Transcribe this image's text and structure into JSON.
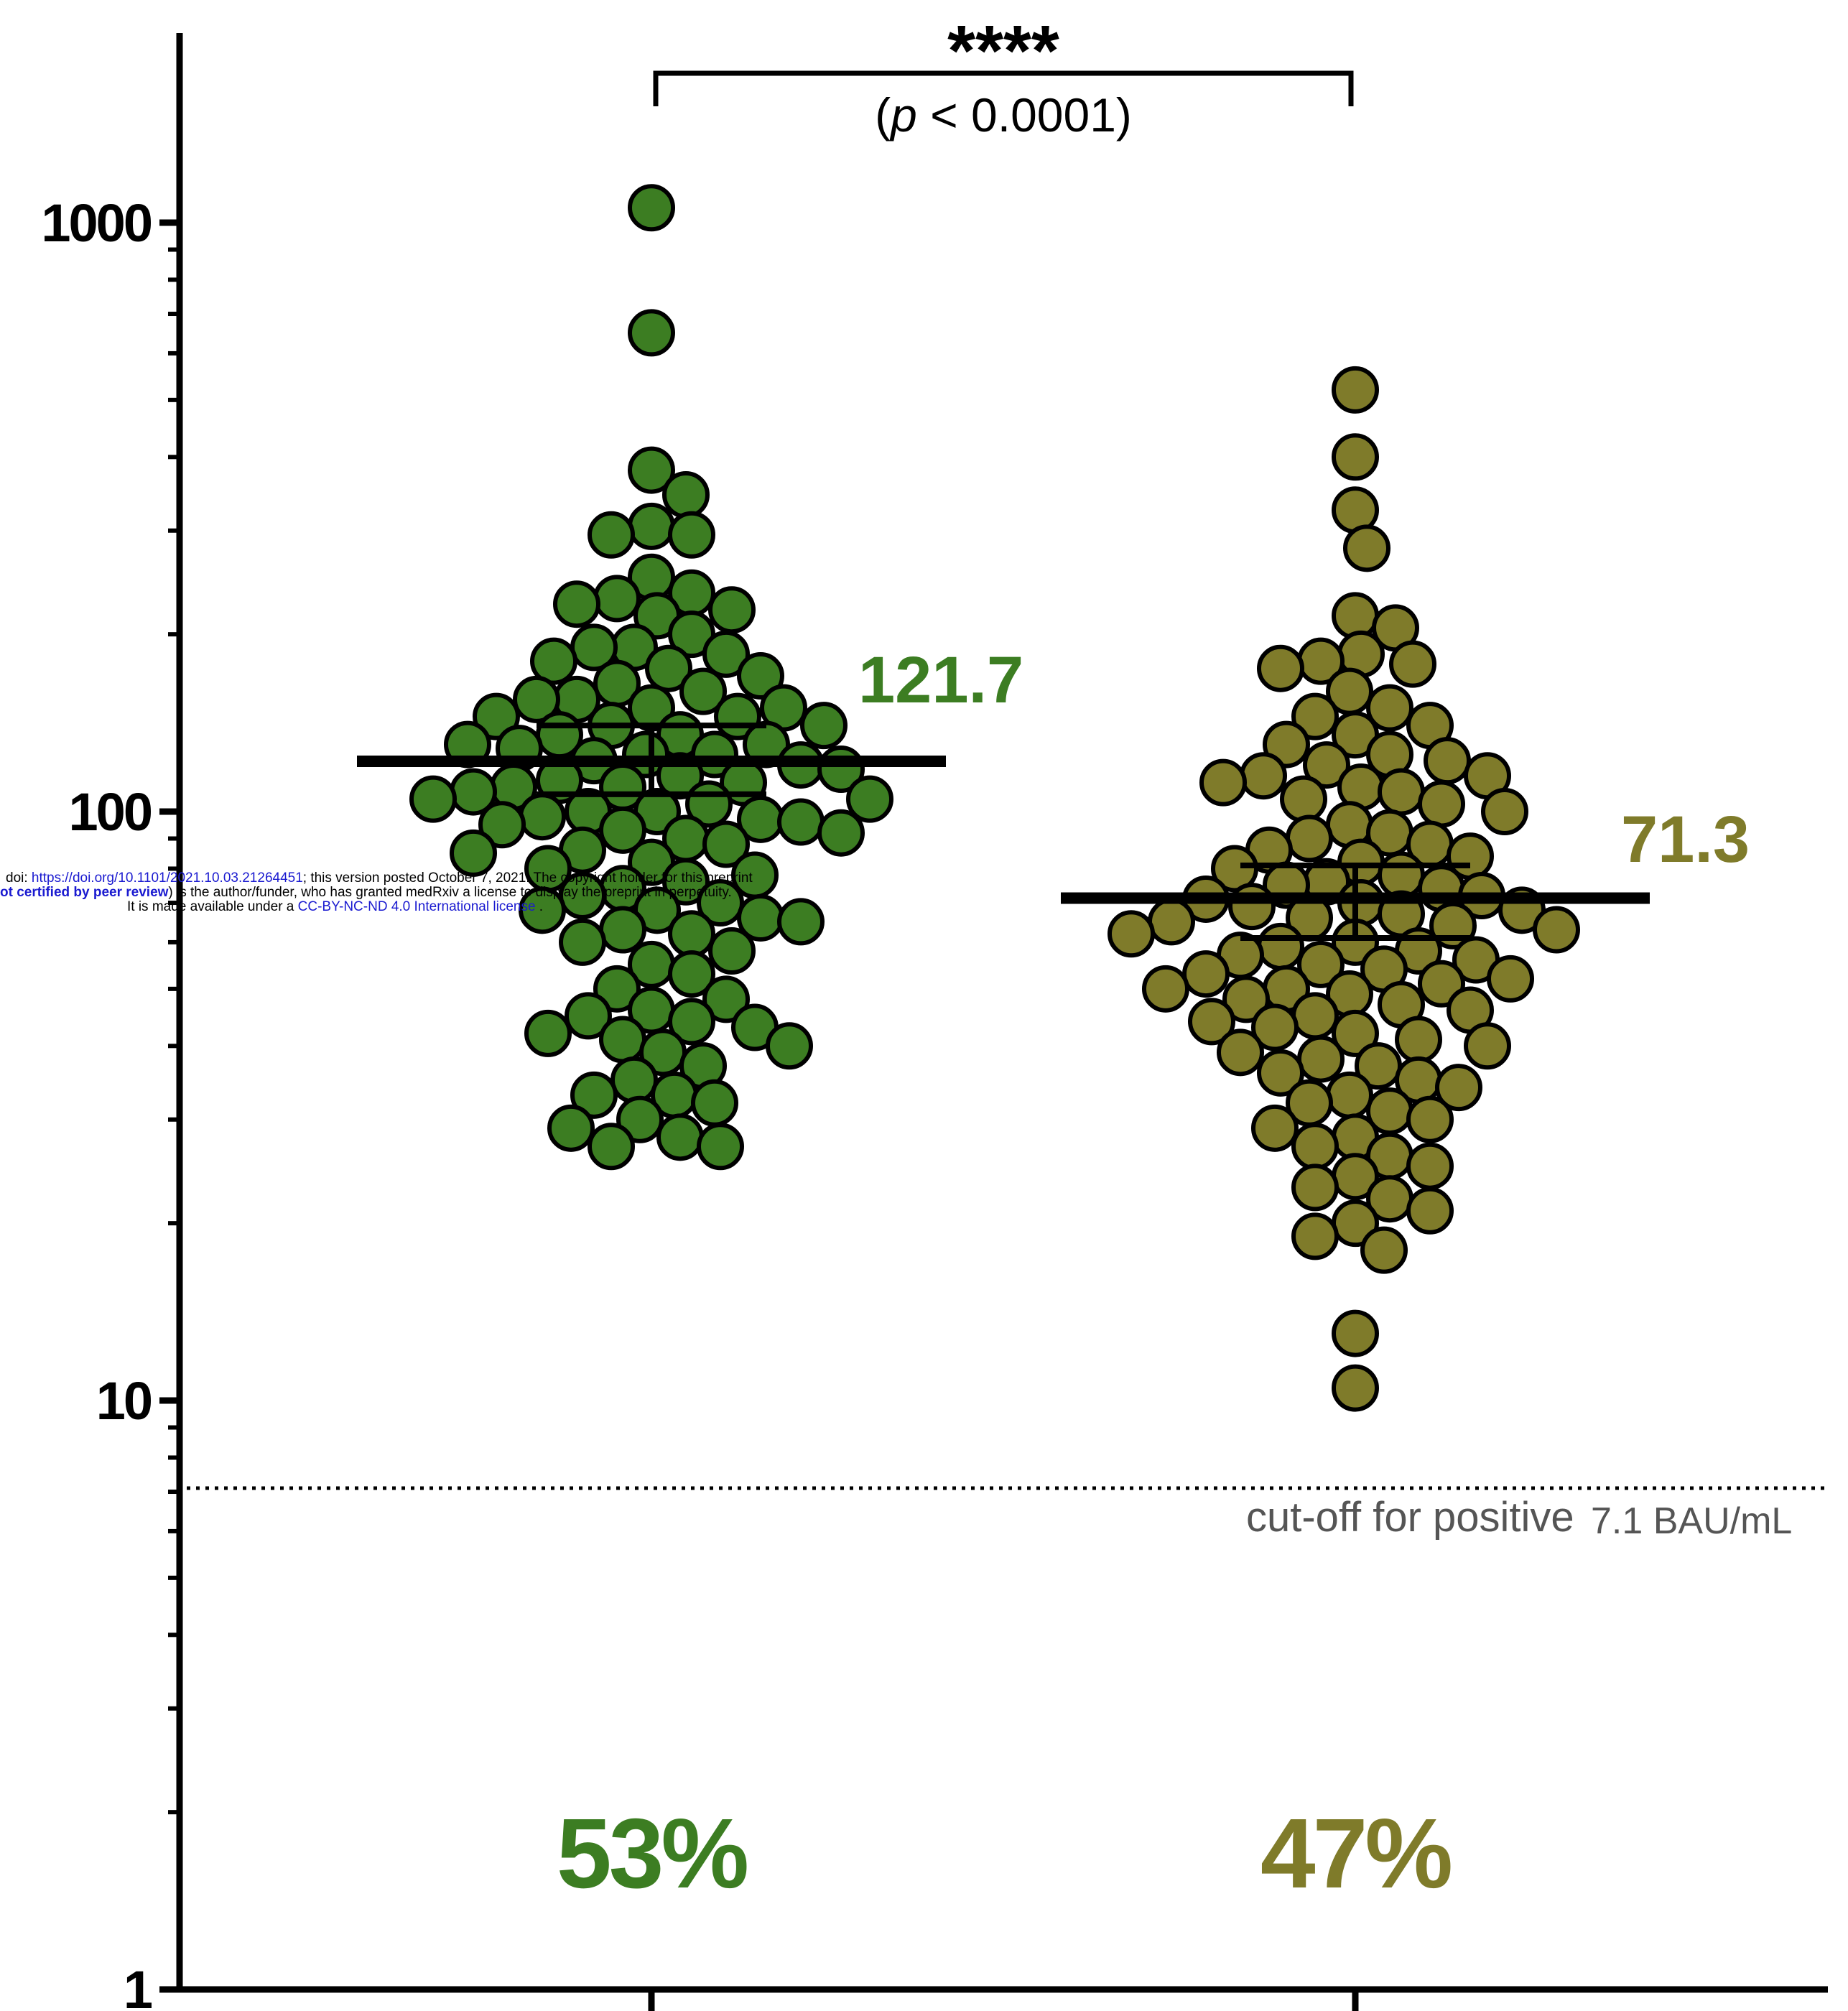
{
  "chart_data": {
    "type": "scatter",
    "subtype": "dot-plot-log-scale",
    "title": "",
    "xlabel": "",
    "ylabel": "",
    "yscale": "log",
    "ylim": [
      1,
      2000
    ],
    "yticks": [
      {
        "value": 1,
        "label": "1"
      },
      {
        "value": 10,
        "label": "10"
      },
      {
        "value": 100,
        "label": "100"
      },
      {
        "value": 1000,
        "label": "1000"
      }
    ],
    "categories": [
      "",
      ""
    ],
    "grid": false,
    "legend": "none",
    "significance": {
      "stars": "****",
      "p_text_prefix": "(",
      "p_symbol": "p",
      "p_text_suffix": " < 0.0001)"
    },
    "cutoff": {
      "value": 7.1,
      "label": "cut-off for positive",
      "value_label": "7.1 BAU/mL"
    },
    "series": [
      {
        "color": "#3c7d22",
        "median": 121.7,
        "median_label": "121.7",
        "ci": [
          107,
          140
        ],
        "percent_label": "53%",
        "points": [
          1060,
          650,
          380,
          345,
          305,
          295,
          295,
          250,
          235,
          230,
          225,
          220,
          215,
          200,
          190,
          190,
          185,
          180,
          175,
          170,
          165,
          160,
          155,
          155,
          150,
          150,
          145,
          145,
          140,
          140,
          135,
          135,
          130,
          130,
          128,
          125,
          125,
          122,
          120,
          118,
          115,
          113,
          112,
          110,
          110,
          108,
          105,
          105,
          103,
          100,
          100,
          98,
          97,
          96,
          95,
          93,
          92,
          90,
          88,
          86,
          85,
          82,
          80,
          78,
          76,
          74,
          72,
          70,
          68,
          68,
          66,
          65,
          63,
          62,
          60,
          58,
          55,
          53,
          50,
          48,
          46,
          45,
          44,
          43,
          42,
          41,
          40,
          39,
          37,
          35,
          33,
          33,
          32,
          30,
          29,
          28,
          27,
          27
        ]
      },
      {
        "color": "#7f7b2a",
        "median": 71.3,
        "median_label": "71.3",
        "ci": [
          61,
          81
        ],
        "percent_label": "47%",
        "points": [
          520,
          400,
          325,
          280,
          215,
          205,
          185,
          180,
          178,
          175,
          160,
          150,
          145,
          140,
          135,
          130,
          125,
          122,
          120,
          115,
          115,
          112,
          110,
          108,
          105,
          103,
          100,
          95,
          92,
          90,
          88,
          86,
          84,
          82,
          80,
          78,
          76,
          75,
          74,
          72,
          71,
          70,
          69,
          68,
          67,
          66,
          65,
          64,
          63,
          62,
          60,
          59,
          58,
          57,
          56,
          55,
          54,
          53,
          52,
          51,
          50,
          50,
          49,
          48,
          47,
          46,
          45,
          44,
          43,
          42,
          41,
          40,
          39,
          38,
          37,
          36,
          35,
          34,
          33,
          32,
          31,
          30,
          29,
          28,
          27,
          26,
          25,
          24,
          23,
          22,
          21,
          20,
          19,
          18,
          13,
          10.5
        ]
      }
    ]
  },
  "watermark": {
    "line1_prefix": "doi: ",
    "line1_link": "https://doi.org/10.1101/2021.10.03.21264451",
    "line1_suffix": "; this version posted October 7, 2021. The copyright holder for this preprint",
    "line2_bold": "ot certified by peer review",
    "line2_suffix": ") is the author/funder, who has granted medRxiv a license to display the preprint in perpetuity.",
    "line3_prefix": "It is made available under a ",
    "line3_link": "CC-BY-NC-ND 4.0 International license",
    "line3_suffix": " ."
  }
}
